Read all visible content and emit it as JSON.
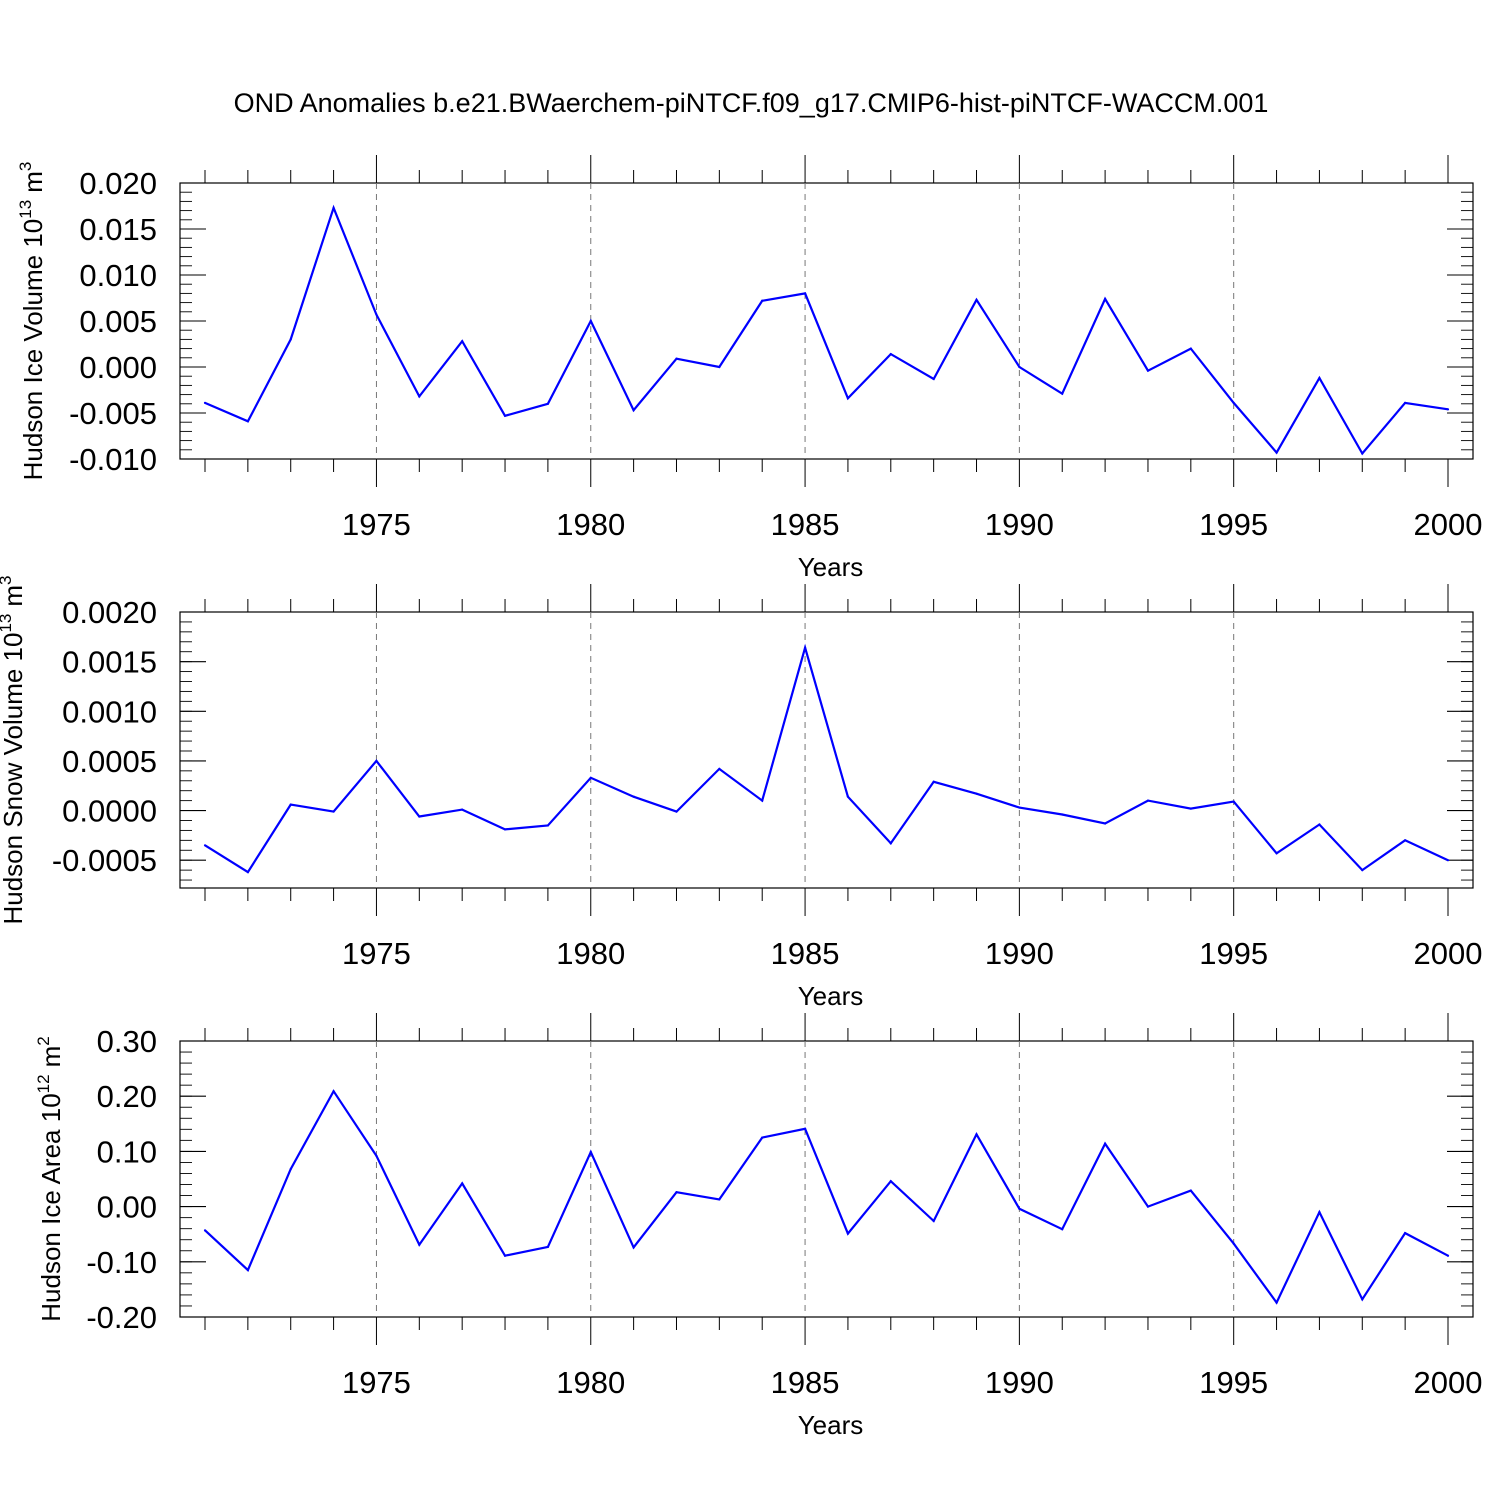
{
  "figure": {
    "title": "OND Anomalies b.e21.BWaerchem-piNTCF.f09_g17.CMIP6-hist-piNTCF-WACCM.001"
  },
  "chart_data": [
    {
      "type": "line",
      "xlabel": "Years",
      "ylabel": "Hudson Ice Volume 10",
      "ylabel_exp": "13",
      "ylabel_unit": "m",
      "ylabel_unit_exp": "3",
      "xlim": [
        1971,
        2000
      ],
      "ylim": [
        -0.01,
        0.02
      ],
      "x_ticks": [
        1975,
        1980,
        1985,
        1990,
        1995,
        2000
      ],
      "y_ticks": [
        "-0.010",
        "-0.005",
        "0.000",
        "0.005",
        "0.010",
        "0.015",
        "0.020"
      ],
      "y_tick_values": [
        -0.01,
        -0.005,
        0.0,
        0.005,
        0.01,
        0.015,
        0.02
      ],
      "y_minor_step": 0.001,
      "grid": "vertical dashed at major x ticks",
      "line_color": "#0000ff",
      "x": [
        1971,
        1972,
        1973,
        1974,
        1975,
        1976,
        1977,
        1978,
        1979,
        1980,
        1981,
        1982,
        1983,
        1984,
        1985,
        1986,
        1987,
        1988,
        1989,
        1990,
        1991,
        1992,
        1993,
        1994,
        1995,
        1996,
        1997,
        1998,
        1999,
        2000
      ],
      "y": [
        -0.0039,
        -0.0059,
        0.003,
        0.0173,
        0.0057,
        -0.0032,
        0.0028,
        -0.0053,
        -0.004,
        0.005,
        -0.0047,
        0.0009,
        0.0,
        0.0072,
        0.008,
        -0.0034,
        0.0014,
        -0.0013,
        0.0073,
        0.0,
        -0.0029,
        0.0074,
        -0.0004,
        0.002,
        -0.0039,
        -0.0093,
        -0.0012,
        -0.0094,
        -0.0039,
        -0.0046
      ]
    },
    {
      "type": "line",
      "xlabel": "Years",
      "ylabel": "Hudson Snow Volume 10",
      "ylabel_exp": "13",
      "ylabel_unit": "m",
      "ylabel_unit_exp": "3",
      "xlim": [
        1971,
        2000
      ],
      "ylim": [
        -0.00078,
        0.002
      ],
      "x_ticks": [
        1975,
        1980,
        1985,
        1990,
        1995,
        2000
      ],
      "y_ticks": [
        "-0.0005",
        "0.0000",
        "0.0005",
        "0.0010",
        "0.0015",
        "0.0020"
      ],
      "y_tick_values": [
        -0.0005,
        0.0,
        0.0005,
        0.001,
        0.0015,
        0.002
      ],
      "y_minor_step": 0.0001,
      "grid": "vertical dashed at major x ticks",
      "line_color": "#0000ff",
      "x": [
        1971,
        1972,
        1973,
        1974,
        1975,
        1976,
        1977,
        1978,
        1979,
        1980,
        1981,
        1982,
        1983,
        1984,
        1985,
        1986,
        1987,
        1988,
        1989,
        1990,
        1991,
        1992,
        1993,
        1994,
        1995,
        1996,
        1997,
        1998,
        1999,
        2000
      ],
      "y": [
        -0.00035,
        -0.00062,
        6e-05,
        -1e-05,
        0.0005,
        -6e-05,
        1e-05,
        -0.00019,
        -0.00015,
        0.00033,
        0.00014,
        -1e-05,
        0.00042,
        0.0001,
        0.00164,
        0.00014,
        -0.00033,
        0.00029,
        0.00017,
        3e-05,
        -4e-05,
        -0.00013,
        0.0001,
        2e-05,
        9e-05,
        -0.00043,
        -0.00014,
        -0.0006,
        -0.0003,
        -0.0005
      ]
    },
    {
      "type": "line",
      "xlabel": "Years",
      "ylabel": "Hudson Ice Area 10",
      "ylabel_exp": "12",
      "ylabel_unit": "m",
      "ylabel_unit_exp": "2",
      "xlim": [
        1971,
        2000
      ],
      "ylim": [
        -0.2,
        0.3
      ],
      "x_ticks": [
        1975,
        1980,
        1985,
        1990,
        1995,
        2000
      ],
      "y_ticks": [
        "-0.20",
        "-0.10",
        "0.00",
        "0.10",
        "0.20",
        "0.30"
      ],
      "y_tick_values": [
        -0.2,
        -0.1,
        0.0,
        0.1,
        0.2,
        0.3
      ],
      "y_minor_step": 0.02,
      "grid": "vertical dashed at major x ticks",
      "line_color": "#0000ff",
      "x": [
        1971,
        1972,
        1973,
        1974,
        1975,
        1976,
        1977,
        1978,
        1979,
        1980,
        1981,
        1982,
        1983,
        1984,
        1985,
        1986,
        1987,
        1988,
        1989,
        1990,
        1991,
        1992,
        1993,
        1994,
        1995,
        1996,
        1997,
        1998,
        1999,
        2000
      ],
      "y": [
        -0.043,
        -0.115,
        0.068,
        0.209,
        0.092,
        -0.069,
        0.042,
        -0.089,
        -0.073,
        0.099,
        -0.074,
        0.026,
        0.013,
        0.125,
        0.141,
        -0.049,
        0.046,
        -0.026,
        0.131,
        -0.004,
        -0.041,
        0.114,
        0.0,
        0.029,
        -0.067,
        -0.174,
        -0.01,
        -0.168,
        -0.048,
        -0.089
      ]
    }
  ]
}
